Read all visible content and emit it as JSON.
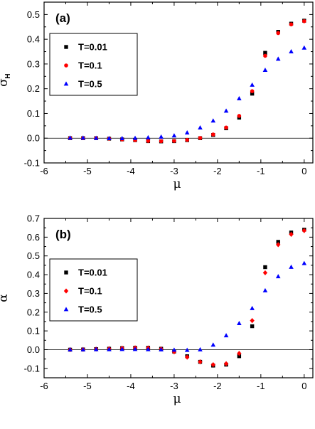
{
  "chart_data": [
    {
      "type": "scatter",
      "panel_label": "(a)",
      "xlabel": "μ",
      "ylabel": "σ",
      "ylabel_sub": "H",
      "xlim": [
        -6,
        0.2
      ],
      "ylim": [
        -0.1,
        0.55
      ],
      "xticks": [
        "-6",
        "-5",
        "-4",
        "-3",
        "-2",
        "-1",
        "0"
      ],
      "yticks": [
        "-0.1",
        "0.0",
        "0.1",
        "0.2",
        "0.3",
        "0.4",
        "0.5"
      ],
      "baseline": 0,
      "legend_position": "upper-left",
      "series": [
        {
          "name": "T=0.01",
          "marker": "square",
          "color": "#000000",
          "x": [
            -5.4,
            -5.1,
            -4.8,
            -4.5,
            -4.2,
            -3.9,
            -3.6,
            -3.3,
            -3.0,
            -2.7,
            -2.4,
            -2.1,
            -1.8,
            -1.5,
            -1.2,
            -0.9,
            -0.6,
            -0.3,
            0.0
          ],
          "y": [
            0.0,
            0.0,
            0.0,
            -0.002,
            -0.005,
            -0.008,
            -0.012,
            -0.013,
            -0.012,
            -0.008,
            0.0,
            0.013,
            0.04,
            0.083,
            0.18,
            0.345,
            0.43,
            0.463,
            0.475
          ]
        },
        {
          "name": "T=0.1",
          "marker": "circle",
          "color": "#ff0000",
          "x": [
            -5.4,
            -5.1,
            -4.8,
            -4.5,
            -4.2,
            -3.9,
            -3.6,
            -3.3,
            -3.0,
            -2.7,
            -2.4,
            -2.1,
            -1.8,
            -1.5,
            -1.2,
            -0.9,
            -0.6,
            -0.3,
            0.0
          ],
          "y": [
            0.0,
            0.0,
            0.0,
            -0.002,
            -0.005,
            -0.008,
            -0.011,
            -0.012,
            -0.011,
            -0.007,
            0.001,
            0.015,
            0.043,
            0.09,
            0.19,
            0.333,
            0.425,
            0.46,
            0.473
          ]
        },
        {
          "name": "T=0.5",
          "marker": "triangle",
          "color": "#0000ff",
          "x": [
            -5.4,
            -5.1,
            -4.8,
            -4.5,
            -4.2,
            -3.9,
            -3.6,
            -3.3,
            -3.0,
            -2.7,
            -2.4,
            -2.1,
            -1.8,
            -1.5,
            -1.2,
            -0.9,
            -0.6,
            -0.3,
            0.0
          ],
          "y": [
            0.001,
            0.001,
            0.0,
            -0.001,
            -0.001,
            0.0,
            0.002,
            0.005,
            0.01,
            0.022,
            0.042,
            0.07,
            0.11,
            0.16,
            0.215,
            0.275,
            0.32,
            0.35,
            0.365
          ]
        }
      ]
    },
    {
      "type": "scatter",
      "panel_label": "(b)",
      "xlabel": "μ",
      "ylabel": "α",
      "xlim": [
        -6,
        0.2
      ],
      "ylim": [
        -0.15,
        0.7
      ],
      "xticks": [
        "-6",
        "-5",
        "-4",
        "-3",
        "-2",
        "-1",
        "0"
      ],
      "yticks": [
        "-0.1",
        "0.0",
        "0.1",
        "0.2",
        "0.3",
        "0.4",
        "0.5",
        "0.6",
        "0.7"
      ],
      "baseline": 0,
      "legend_position": "upper-left",
      "series": [
        {
          "name": "T=0.01",
          "marker": "square",
          "color": "#000000",
          "x": [
            -5.4,
            -5.1,
            -4.8,
            -4.5,
            -4.2,
            -3.9,
            -3.6,
            -3.3,
            -3.0,
            -2.7,
            -2.4,
            -2.1,
            -1.8,
            -1.5,
            -1.2,
            -0.9,
            -0.6,
            -0.3,
            0.0
          ],
          "y": [
            0.0,
            0.001,
            0.003,
            0.005,
            0.008,
            0.01,
            0.01,
            0.005,
            -0.01,
            -0.035,
            -0.065,
            -0.085,
            -0.08,
            -0.035,
            0.125,
            0.44,
            0.575,
            0.625,
            0.64
          ]
        },
        {
          "name": "T=0.1",
          "marker": "diamond",
          "color": "#ff0000",
          "x": [
            -5.4,
            -5.1,
            -4.8,
            -4.5,
            -4.2,
            -3.9,
            -3.6,
            -3.3,
            -3.0,
            -2.7,
            -2.4,
            -2.1,
            -1.8,
            -1.5,
            -1.2,
            -0.9,
            -0.6,
            -0.3,
            0.0
          ],
          "y": [
            0.0,
            0.001,
            0.003,
            0.005,
            0.008,
            0.01,
            0.009,
            0.004,
            -0.012,
            -0.04,
            -0.065,
            -0.08,
            -0.075,
            -0.02,
            0.155,
            0.41,
            0.56,
            0.615,
            0.635
          ]
        },
        {
          "name": "T=0.5",
          "marker": "triangle",
          "color": "#0000ff",
          "x": [
            -5.4,
            -5.1,
            -4.8,
            -4.5,
            -4.2,
            -3.9,
            -3.6,
            -3.3,
            -3.0,
            -2.7,
            -2.4,
            -2.1,
            -1.8,
            -1.5,
            -1.2,
            -0.9,
            -0.6,
            -0.3,
            0.0
          ],
          "y": [
            0.0,
            0.0,
            0.001,
            0.001,
            0.002,
            0.002,
            0.001,
            0.0,
            -0.002,
            -0.003,
            0.0,
            0.025,
            0.075,
            0.14,
            0.22,
            0.315,
            0.39,
            0.44,
            0.46
          ]
        }
      ]
    }
  ]
}
